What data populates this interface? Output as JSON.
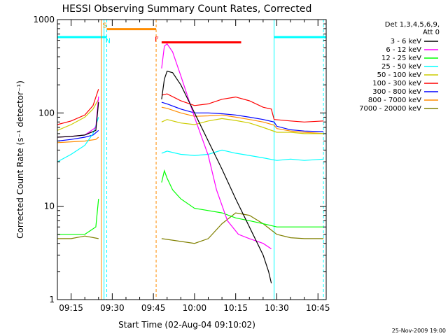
{
  "chart_data": {
    "type": "line",
    "title": "HESSI Observing Summary Count Rates, Corrected",
    "xlabel": "Start Time (02-Aug-04 09:10:02)",
    "ylabel": "Corrected Count Rate (s⁻¹ detector⁻¹)",
    "ylog": true,
    "xlim": [
      "09:10",
      "10:48"
    ],
    "ylim": [
      1,
      1000
    ],
    "x_ticks": [
      "09:15",
      "09:30",
      "09:45",
      "10:00",
      "10:15",
      "10:30",
      "10:45"
    ],
    "y_ticks": [
      1,
      10,
      100,
      1000
    ],
    "y_tick_labels": [
      "1",
      "10",
      "100",
      "1000"
    ],
    "legend_header": [
      "Det 1,3,4,5,6,9,",
      "Att 0"
    ],
    "legend_position": "right",
    "footer_date": "25-Nov-2009 19:00",
    "series": [
      {
        "name": "3 - 6 keV",
        "color": "#000000",
        "segments": [
          {
            "x": [
              "09:10",
              "09:15",
              "09:20",
              "09:24",
              "09:25"
            ],
            "y": [
              55,
              56,
              58,
              65,
              130
            ]
          },
          {
            "x": [
              "09:48",
              "09:49",
              "09:50",
              "09:52",
              "09:55",
              "10:00",
              "10:05",
              "10:10",
              "10:15",
              "10:20",
              "10:25",
              "10:27",
              "10:28"
            ],
            "y": [
              140,
              230,
              280,
              270,
              200,
              100,
              50,
              25,
              12,
              6,
              3,
              2,
              1.5
            ]
          }
        ]
      },
      {
        "name": "6 - 12 keV",
        "color": "#ff00ff",
        "segments": [
          {
            "x": [
              "09:10",
              "09:15",
              "09:20",
              "09:24",
              "09:25"
            ],
            "y": [
              55,
              56,
              58,
              70,
              150
            ]
          },
          {
            "x": [
              "09:48",
              "09:49",
              "09:50",
              "09:52",
              "09:55",
              "10:00",
              "10:05",
              "10:08",
              "10:12",
              "10:16",
              "10:20",
              "10:25",
              "10:28"
            ],
            "y": [
              300,
              520,
              550,
              450,
              250,
              90,
              35,
              15,
              7,
              5,
              4.5,
              4,
              3.5
            ]
          }
        ]
      },
      {
        "name": "12 - 25 keV",
        "color": "#00ff00",
        "segments": [
          {
            "x": [
              "09:10",
              "09:15",
              "09:20",
              "09:24",
              "09:25"
            ],
            "y": [
              5,
              5,
              5,
              6,
              12
            ]
          },
          {
            "x": [
              "09:48",
              "09:49",
              "09:50",
              "09:52",
              "09:55",
              "10:00",
              "10:05",
              "10:10",
              "10:15",
              "10:20",
              "10:25",
              "10:30",
              "10:35",
              "10:40",
              "10:47"
            ],
            "y": [
              18,
              24,
              20,
              15,
              12,
              9.5,
              9,
              8.5,
              7.5,
              7,
              6.5,
              6,
              6,
              6,
              6
            ]
          }
        ]
      },
      {
        "name": "25 - 50 keV",
        "color": "#00ffff",
        "segments": [
          {
            "x": [
              "09:10",
              "09:15",
              "09:20",
              "09:23",
              "09:25"
            ],
            "y": [
              30,
              36,
              45,
              60,
              90
            ]
          },
          {
            "x": [
              "09:48",
              "09:50",
              "09:55",
              "10:00",
              "10:05",
              "10:10",
              "10:15",
              "10:20",
              "10:25",
              "10:30",
              "10:35",
              "10:40",
              "10:47"
            ],
            "y": [
              37,
              39,
              36,
              35,
              36,
              40,
              37,
              35,
              33,
              31,
              32,
              31,
              32
            ]
          }
        ]
      },
      {
        "name": "50 - 100 keV",
        "color": "#cccc00",
        "segments": [
          {
            "x": [
              "09:10",
              "09:15",
              "09:20",
              "09:23",
              "09:25"
            ],
            "y": [
              65,
              75,
              90,
              110,
              140
            ]
          },
          {
            "x": [
              "09:48",
              "09:50",
              "09:55",
              "10:00",
              "10:05",
              "10:10",
              "10:15",
              "10:20",
              "10:25",
              "10:30",
              "10:35",
              "10:40",
              "10:47"
            ],
            "y": [
              80,
              85,
              78,
              75,
              82,
              87,
              83,
              78,
              70,
              62,
              62,
              60,
              60
            ]
          }
        ]
      },
      {
        "name": "100 - 300 keV",
        "color": "#ff0000",
        "segments": [
          {
            "x": [
              "09:10",
              "09:15",
              "09:20",
              "09:23",
              "09:25"
            ],
            "y": [
              75,
              82,
              95,
              120,
              180
            ]
          },
          {
            "x": [
              "09:48",
              "09:50",
              "09:55",
              "10:00",
              "10:05",
              "10:10",
              "10:15",
              "10:20",
              "10:25",
              "10:28",
              "10:29",
              "10:35",
              "10:40",
              "10:47"
            ],
            "y": [
              155,
              160,
              135,
              120,
              125,
              140,
              148,
              135,
              115,
              110,
              85,
              82,
              80,
              82
            ]
          }
        ]
      },
      {
        "name": "300 - 800 keV",
        "color": "#0000ff",
        "segments": [
          {
            "x": [
              "09:10",
              "09:15",
              "09:20",
              "09:23",
              "09:25"
            ],
            "y": [
              50,
              52,
              55,
              58,
              65
            ]
          },
          {
            "x": [
              "09:48",
              "09:50",
              "09:55",
              "10:00",
              "10:05",
              "10:10",
              "10:15",
              "10:20",
              "10:25",
              "10:29",
              "10:30",
              "10:35",
              "10:40",
              "10:47"
            ],
            "y": [
              130,
              125,
              110,
              100,
              100,
              98,
              95,
              90,
              85,
              80,
              72,
              66,
              64,
              63
            ]
          }
        ]
      },
      {
        "name": "800 - 7000 keV",
        "color": "#ff8c00",
        "segments": [
          {
            "x": [
              "09:10",
              "09:15",
              "09:20",
              "09:24",
              "09:25"
            ],
            "y": [
              48,
              49,
              50,
              52,
              55
            ]
          },
          {
            "x": [
              "09:48",
              "09:50",
              "09:55",
              "10:00",
              "10:05",
              "10:10",
              "10:15",
              "10:20",
              "10:25",
              "10:29",
              "10:30",
              "10:35",
              "10:40",
              "10:47"
            ],
            "y": [
              115,
              112,
              100,
              92,
              93,
              95,
              90,
              85,
              80,
              74,
              68,
              64,
              62,
              60
            ]
          }
        ]
      },
      {
        "name": "7000 - 20000 keV",
        "color": "#808000",
        "segments": [
          {
            "x": [
              "09:10",
              "09:15",
              "09:20",
              "09:25"
            ],
            "y": [
              4.5,
              4.5,
              4.8,
              4.5
            ]
          },
          {
            "x": [
              "09:48",
              "09:55",
              "10:00",
              "10:05",
              "10:10",
              "10:15",
              "10:20",
              "10:25",
              "10:30",
              "10:35",
              "10:40",
              "10:47"
            ],
            "y": [
              4.5,
              4.2,
              4.0,
              4.5,
              6.5,
              8.5,
              8,
              6.5,
              5,
              4.6,
              4.5,
              4.5
            ]
          }
        ]
      }
    ],
    "bars": [
      {
        "label": "",
        "color": "#00ffff",
        "x": [
          "09:10",
          "09:28"
        ],
        "y": 650
      },
      {
        "label": "S",
        "color": "#ff8c00",
        "x": [
          "09:28",
          "09:46"
        ],
        "y": 790
      },
      {
        "label": "F",
        "color": "#ff0000",
        "x": [
          "09:48",
          "10:17"
        ],
        "y": 570
      },
      {
        "label": "",
        "color": "#00ffff",
        "x": [
          "10:29",
          "10:48"
        ],
        "y": 650
      }
    ],
    "vlines": [
      {
        "x": "09:26",
        "color": "#ff8c00",
        "style": "solid"
      },
      {
        "x": "09:27",
        "color": "#00ffff",
        "style": "solid"
      },
      {
        "x": "09:28",
        "color": "#00ffff",
        "style": "dashed"
      },
      {
        "x": "09:46",
        "color": "#ff8c00",
        "style": "dashed"
      },
      {
        "x": "10:29",
        "color": "#00ffff",
        "style": "solid"
      },
      {
        "x": "10:47",
        "color": "#00ffff",
        "style": "dashed"
      }
    ],
    "markers": [
      {
        "label": "S",
        "color": "#ff8c00",
        "x": "09:28",
        "y": 880
      },
      {
        "label": "N",
        "color": "#00ffff",
        "x": "09:29",
        "y": 600
      },
      {
        "label": "F",
        "color": "#ff0000",
        "x": "09:47",
        "y": 620
      }
    ]
  }
}
